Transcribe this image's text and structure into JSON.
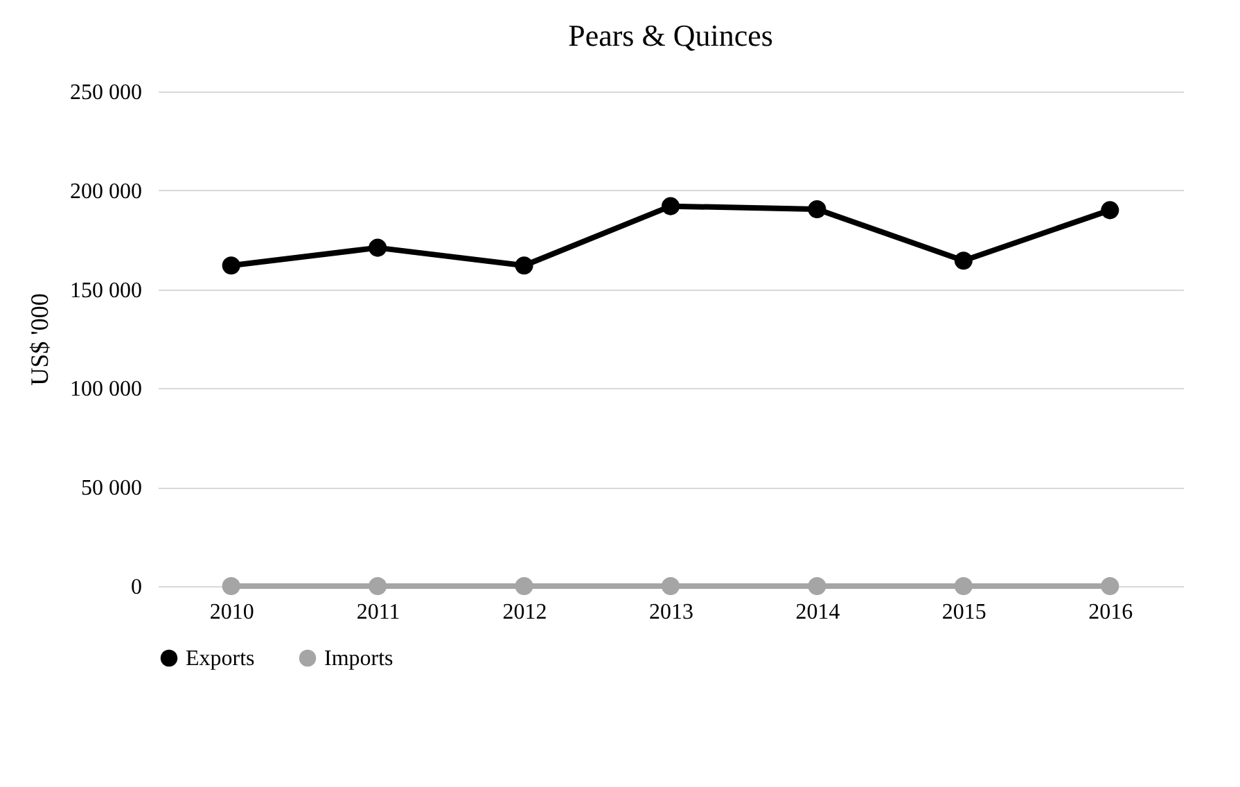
{
  "chart_data": {
    "type": "line",
    "title": "Pears & Quinces",
    "ylabel": "US$ '000",
    "categories": [
      "2010",
      "2011",
      "2012",
      "2013",
      "2014",
      "2015",
      "2016"
    ],
    "series": [
      {
        "name": "Exports",
        "color": "#000000",
        "values": [
          162000,
          171000,
          162000,
          192000,
          190500,
          164500,
          190000
        ]
      },
      {
        "name": "Imports",
        "color": "#a5a5a5",
        "values": [
          0,
          0,
          0,
          0,
          0,
          0,
          0
        ]
      }
    ],
    "ylim": [
      0,
      250000
    ],
    "yticks": [
      {
        "value": 0,
        "label": "0"
      },
      {
        "value": 50000,
        "label": "50 000"
      },
      {
        "value": 100000,
        "label": "100 000"
      },
      {
        "value": 150000,
        "label": "150 000"
      },
      {
        "value": 200000,
        "label": "200 000"
      },
      {
        "value": 250000,
        "label": "250 000"
      }
    ],
    "grid": "y",
    "legend": "bottom",
    "marker": "circle",
    "line_style": "solid"
  }
}
